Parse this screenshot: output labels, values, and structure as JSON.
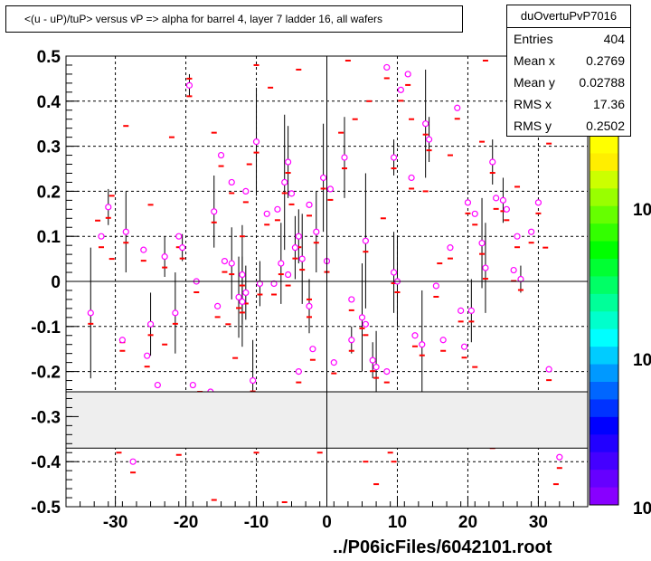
{
  "header": {
    "title": "<(u - uP)/tuP> versus   vP => alpha for barrel 4, layer 7 ladder 16, all wafers"
  },
  "stats": {
    "name": "duOvertuPvP7016",
    "rows": [
      {
        "k": "Entries",
        "v": "404"
      },
      {
        "k": "Mean x",
        "v": "0.2769"
      },
      {
        "k": "Mean y",
        "v": "0.02788"
      },
      {
        "k": "RMS x",
        "v": "17.36"
      },
      {
        "k": "RMS y",
        "v": "0.2502"
      }
    ]
  },
  "footer": {
    "file": "../P06icFiles/6042101.root"
  },
  "palette": {
    "labels": [
      "10",
      "10",
      "10"
    ],
    "colors": [
      "#ffff00",
      "#ffee00",
      "#ccff00",
      "#99ff00",
      "#66ff00",
      "#33ff00",
      "#00ff00",
      "#00ff33",
      "#00ff66",
      "#00ff99",
      "#00ffcc",
      "#00ffff",
      "#00ccff",
      "#0099ff",
      "#0066ff",
      "#0033ff",
      "#0000ff",
      "#2200ff",
      "#4400ff",
      "#6600ff",
      "#8800ff"
    ]
  },
  "chart_data": {
    "type": "scatter",
    "xlim": [
      -37,
      37
    ],
    "ylim": [
      -0.5,
      0.5
    ],
    "x_ticks": [
      -30,
      -20,
      -10,
      0,
      10,
      20,
      30
    ],
    "y_ticks": [
      -0.5,
      -0.4,
      -0.3,
      -0.2,
      -0.1,
      0,
      0.1,
      0.2,
      0.3,
      0.4,
      0.5
    ],
    "grid": true,
    "masked_band": [
      -0.37,
      -0.245
    ],
    "profile_points": [
      {
        "x": -33.5,
        "y": -0.07,
        "e": 0.145
      },
      {
        "x": -32.0,
        "y": 0.1,
        "e": 0
      },
      {
        "x": -31.0,
        "y": 0.165,
        "e": 0.04
      },
      {
        "x": -29.0,
        "y": -0.13,
        "e": 0
      },
      {
        "x": -28.5,
        "y": 0.11,
        "e": 0.09
      },
      {
        "x": -27.5,
        "y": -0.4,
        "e": 0
      },
      {
        "x": -26.0,
        "y": 0.07,
        "e": 0
      },
      {
        "x": -25.5,
        "y": -0.165,
        "e": 0
      },
      {
        "x": -25.0,
        "y": -0.095,
        "e": 0.07
      },
      {
        "x": -24.0,
        "y": -0.23,
        "e": 0
      },
      {
        "x": -23.0,
        "y": 0.055,
        "e": 0.045
      },
      {
        "x": -21.5,
        "y": -0.07,
        "e": 0.09
      },
      {
        "x": -21.0,
        "y": 0.1,
        "e": 0
      },
      {
        "x": -20.5,
        "y": 0.075,
        "e": 0.03
      },
      {
        "x": -19.5,
        "y": 0.435,
        "e": 0.025
      },
      {
        "x": -18.5,
        "y": 0.0,
        "e": 0
      },
      {
        "x": -19.0,
        "y": -0.23,
        "e": 0
      },
      {
        "x": -16.5,
        "y": -0.245,
        "e": 0
      },
      {
        "x": -16.0,
        "y": 0.155,
        "e": 0.08
      },
      {
        "x": -15.5,
        "y": -0.055,
        "e": 0
      },
      {
        "x": -15.0,
        "y": 0.28,
        "e": 0
      },
      {
        "x": -14.5,
        "y": 0.045,
        "e": 0
      },
      {
        "x": -13.5,
        "y": 0.04,
        "e": 0.08
      },
      {
        "x": -13.5,
        "y": 0.22,
        "e": 0
      },
      {
        "x": -12.5,
        "y": -0.035,
        "e": 0.09
      },
      {
        "x": -12.0,
        "y": -0.045,
        "e": 0.1
      },
      {
        "x": -12.0,
        "y": 0.015,
        "e": 0.11
      },
      {
        "x": -11.5,
        "y": 0.2,
        "e": 0
      },
      {
        "x": -11.5,
        "y": -0.025,
        "e": 0.06
      },
      {
        "x": -10.5,
        "y": -0.22,
        "e": 0.09
      },
      {
        "x": -10.0,
        "y": 0.31,
        "e": 0.12
      },
      {
        "x": -9.5,
        "y": -0.005,
        "e": 0.05
      },
      {
        "x": -8.5,
        "y": 0.15,
        "e": 0
      },
      {
        "x": -7.5,
        "y": -0.005,
        "e": 0
      },
      {
        "x": -7.0,
        "y": 0.16,
        "e": 0
      },
      {
        "x": -6.5,
        "y": 0.04,
        "e": 0.09
      },
      {
        "x": -6.0,
        "y": 0.22,
        "e": 0.15
      },
      {
        "x": -5.5,
        "y": 0.265,
        "e": 0.08
      },
      {
        "x": -5.5,
        "y": 0.015,
        "e": 0
      },
      {
        "x": -5.0,
        "y": 0.195,
        "e": 0
      },
      {
        "x": -4.5,
        "y": 0.075,
        "e": 0.07
      },
      {
        "x": -4.0,
        "y": -0.2,
        "e": 0
      },
      {
        "x": -4.0,
        "y": 0.1,
        "e": 0.06
      },
      {
        "x": -3.5,
        "y": 0.05,
        "e": 0.1
      },
      {
        "x": -2.5,
        "y": -0.055,
        "e": 0.06
      },
      {
        "x": -2.5,
        "y": 0.17,
        "e": 0
      },
      {
        "x": -2.0,
        "y": -0.15,
        "e": 0
      },
      {
        "x": -1.5,
        "y": 0.11,
        "e": 0.09
      },
      {
        "x": -0.5,
        "y": 0.23,
        "e": 0.12
      },
      {
        "x": 0.0,
        "y": 0.045,
        "e": 0.25
      },
      {
        "x": 0.5,
        "y": 0.205,
        "e": 0
      },
      {
        "x": 1.0,
        "y": -0.18,
        "e": 0
      },
      {
        "x": 2.5,
        "y": 0.275,
        "e": 0.09
      },
      {
        "x": 3.5,
        "y": -0.04,
        "e": 0
      },
      {
        "x": 3.5,
        "y": -0.13,
        "e": 0.03
      },
      {
        "x": 5.0,
        "y": -0.08,
        "e": 0.12
      },
      {
        "x": 5.5,
        "y": 0.09,
        "e": 0.15
      },
      {
        "x": 5.5,
        "y": -0.095,
        "e": 0
      },
      {
        "x": 6.5,
        "y": -0.175,
        "e": 0.04
      },
      {
        "x": 7.0,
        "y": -0.19,
        "e": 0.08
      },
      {
        "x": 8.5,
        "y": 0.475,
        "e": 0
      },
      {
        "x": 8.5,
        "y": -0.2,
        "e": 0
      },
      {
        "x": 9.5,
        "y": 0.275,
        "e": 0.04
      },
      {
        "x": 9.5,
        "y": 0.02,
        "e": 0.09
      },
      {
        "x": 10.0,
        "y": 0.0,
        "e": 0.1
      },
      {
        "x": 10.5,
        "y": 0.425,
        "e": 0
      },
      {
        "x": 11.5,
        "y": 0.46,
        "e": 0
      },
      {
        "x": 12.0,
        "y": 0.23,
        "e": 0
      },
      {
        "x": 12.5,
        "y": -0.12,
        "e": 0
      },
      {
        "x": 13.5,
        "y": -0.14,
        "e": 0.12
      },
      {
        "x": 14.0,
        "y": 0.35,
        "e": 0.12
      },
      {
        "x": 14.5,
        "y": 0.315,
        "e": 0.05
      },
      {
        "x": 15.5,
        "y": -0.01,
        "e": 0
      },
      {
        "x": 16.5,
        "y": -0.13,
        "e": 0
      },
      {
        "x": 17.5,
        "y": 0.075,
        "e": 0
      },
      {
        "x": 18.5,
        "y": 0.385,
        "e": 0
      },
      {
        "x": 19.0,
        "y": -0.065,
        "e": 0
      },
      {
        "x": 19.5,
        "y": -0.145,
        "e": 0
      },
      {
        "x": 20.0,
        "y": 0.175,
        "e": 0
      },
      {
        "x": 20.5,
        "y": -0.065,
        "e": 0.07
      },
      {
        "x": 21.0,
        "y": 0.15,
        "e": 0
      },
      {
        "x": 22.0,
        "y": 0.085,
        "e": 0.1
      },
      {
        "x": 22.5,
        "y": 0.03,
        "e": 0.1
      },
      {
        "x": 23.5,
        "y": 0.265,
        "e": 0.05
      },
      {
        "x": 24.0,
        "y": 0.185,
        "e": 0
      },
      {
        "x": 25.0,
        "y": 0.18,
        "e": 0.05
      },
      {
        "x": 25.5,
        "y": 0.16,
        "e": 0
      },
      {
        "x": 26.5,
        "y": 0.025,
        "e": 0
      },
      {
        "x": 27.0,
        "y": 0.1,
        "e": 0
      },
      {
        "x": 27.5,
        "y": 0.005,
        "e": 0.03
      },
      {
        "x": 29.0,
        "y": 0.11,
        "e": 0
      },
      {
        "x": 30.0,
        "y": 0.175,
        "e": 0
      },
      {
        "x": 31.5,
        "y": 0.33,
        "e": 0
      },
      {
        "x": 31.5,
        "y": -0.195,
        "e": 0
      },
      {
        "x": 33.0,
        "y": -0.39,
        "e": 0
      }
    ],
    "raw_points": [
      {
        "x": -32.5,
        "y": 0.135
      },
      {
        "x": -30.5,
        "y": 0.19
      },
      {
        "x": -30.5,
        "y": 0.05
      },
      {
        "x": -29.0,
        "y": -0.135
      },
      {
        "x": -29.5,
        "y": -0.38
      },
      {
        "x": -28.5,
        "y": 0.345
      },
      {
        "x": -25.0,
        "y": 0.17
      },
      {
        "x": -23.0,
        "y": -0.14
      },
      {
        "x": -22.0,
        "y": 0.32
      },
      {
        "x": -21.0,
        "y": -0.385
      },
      {
        "x": -19.5,
        "y": 0.45
      },
      {
        "x": -18.0,
        "y": -0.245
      },
      {
        "x": -16.0,
        "y": -0.485
      },
      {
        "x": -16.0,
        "y": 0.33
      },
      {
        "x": -14.0,
        "y": -0.095
      },
      {
        "x": -13.0,
        "y": -0.17
      },
      {
        "x": -12.0,
        "y": 0.1
      },
      {
        "x": -11.0,
        "y": 0.26
      },
      {
        "x": -10.0,
        "y": 0.48
      },
      {
        "x": -10.0,
        "y": -0.38
      },
      {
        "x": -8.0,
        "y": 0.43
      },
      {
        "x": -7.0,
        "y": -0.3
      },
      {
        "x": -6.0,
        "y": -0.49
      },
      {
        "x": -4.0,
        "y": 0.47
      },
      {
        "x": -2.5,
        "y": -0.04
      },
      {
        "x": -1.0,
        "y": -0.38
      },
      {
        "x": 2.0,
        "y": 0.33
      },
      {
        "x": 3.0,
        "y": 0.49
      },
      {
        "x": 4.0,
        "y": 0.36
      },
      {
        "x": 5.5,
        "y": -0.4
      },
      {
        "x": 6.0,
        "y": 0.4
      },
      {
        "x": 7.0,
        "y": -0.45
      },
      {
        "x": 8.0,
        "y": 0.14
      },
      {
        "x": 9.0,
        "y": -0.38
      },
      {
        "x": 9.5,
        "y": -0.4
      },
      {
        "x": 12.0,
        "y": 0.36
      },
      {
        "x": 14.0,
        "y": 0.2
      },
      {
        "x": 16.0,
        "y": 0.04
      },
      {
        "x": 17.5,
        "y": 0.28
      },
      {
        "x": 21.0,
        "y": -0.19
      },
      {
        "x": 22.0,
        "y": 0.31
      },
      {
        "x": 22.5,
        "y": 0.49
      },
      {
        "x": 23.5,
        "y": -0.37
      },
      {
        "x": 25.0,
        "y": -0.27
      },
      {
        "x": 27.0,
        "y": 0.21
      },
      {
        "x": 29.0,
        "y": 0.42
      },
      {
        "x": 31.0,
        "y": 0.075
      },
      {
        "x": 32.5,
        "y": -0.45
      }
    ]
  }
}
